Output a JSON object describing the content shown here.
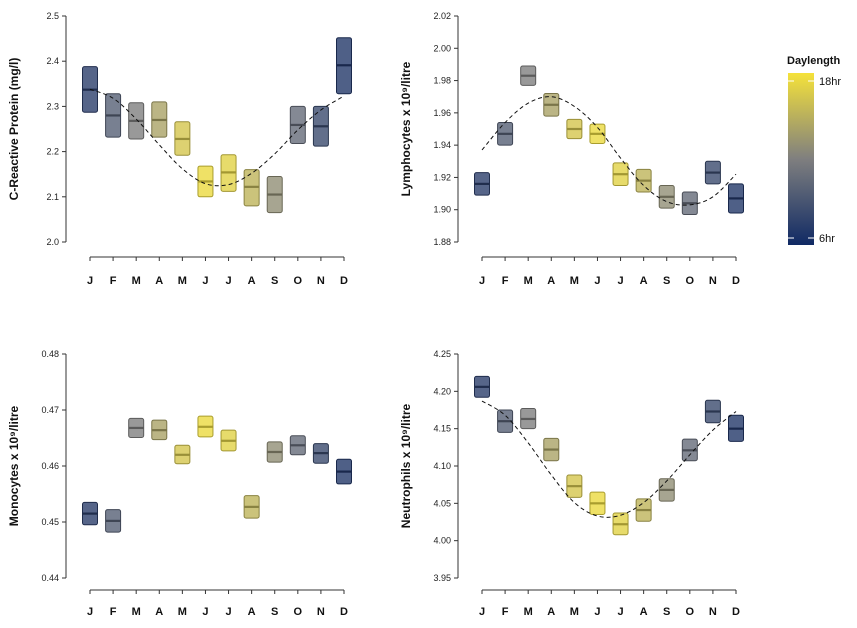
{
  "legend": {
    "title": "Daylength",
    "high_label": "18hr",
    "low_label": "6hr",
    "color_high": "#f5e23a",
    "color_mid": "#7f7f7f",
    "color_low": "#102a64"
  },
  "chart_data": [
    {
      "type": "crossbar",
      "ylabel": "C-Reactive Protein (mg/l)",
      "categories": [
        "J",
        "F",
        "M",
        "A",
        "M",
        "J",
        "J",
        "A",
        "S",
        "O",
        "N",
        "D"
      ],
      "ylim": [
        2.0,
        2.5
      ],
      "yticks": [
        "2.0",
        "2.1",
        "2.2",
        "2.3",
        "2.4",
        "2.5"
      ],
      "mean": [
        2.337,
        2.28,
        2.268,
        2.27,
        2.228,
        2.134,
        2.154,
        2.122,
        2.105,
        2.259,
        2.256,
        2.391
      ],
      "lower": [
        2.287,
        2.232,
        2.228,
        2.232,
        2.192,
        2.1,
        2.112,
        2.08,
        2.065,
        2.218,
        2.212,
        2.328
      ],
      "upper": [
        2.388,
        2.328,
        2.308,
        2.31,
        2.266,
        2.168,
        2.193,
        2.16,
        2.145,
        2.3,
        2.3,
        2.452
      ],
      "daylength": [
        7.5,
        9.8,
        12.0,
        14.2,
        16.3,
        17.5,
        17.0,
        15.2,
        12.9,
        10.6,
        8.3,
        7.0
      ],
      "fit": [
        2.338,
        2.318,
        2.272,
        2.215,
        2.162,
        2.129,
        2.127,
        2.152,
        2.195,
        2.248,
        2.292,
        2.323
      ]
    },
    {
      "type": "crossbar",
      "ylabel": "Lymphocytes x 10⁹/litre",
      "categories": [
        "J",
        "F",
        "M",
        "A",
        "M",
        "J",
        "J",
        "A",
        "S",
        "O",
        "N",
        "D"
      ],
      "ylim": [
        1.88,
        2.02
      ],
      "yticks": [
        "1.88",
        "1.90",
        "1.92",
        "1.94",
        "1.96",
        "1.98",
        "2.00",
        "2.02"
      ],
      "mean": [
        1.916,
        1.947,
        1.983,
        1.965,
        1.95,
        1.947,
        1.922,
        1.918,
        1.908,
        1.904,
        1.923,
        1.907
      ],
      "lower": [
        1.909,
        1.94,
        1.977,
        1.958,
        1.944,
        1.941,
        1.915,
        1.911,
        1.901,
        1.897,
        1.916,
        1.898
      ],
      "upper": [
        1.923,
        1.954,
        1.989,
        1.972,
        1.956,
        1.953,
        1.929,
        1.925,
        1.915,
        1.911,
        1.93,
        1.916
      ],
      "daylength": [
        7.5,
        9.8,
        12.0,
        14.2,
        16.3,
        17.5,
        17.0,
        15.2,
        12.9,
        10.6,
        8.3,
        7.0
      ],
      "fit": [
        1.937,
        1.954,
        1.966,
        1.97,
        1.964,
        1.951,
        1.932,
        1.915,
        1.905,
        1.903,
        1.908,
        1.922
      ]
    },
    {
      "type": "crossbar",
      "ylabel": "Monocytes x 10⁹/litre",
      "categories": [
        "J",
        "F",
        "M",
        "A",
        "M",
        "J",
        "J",
        "A",
        "S",
        "O",
        "N",
        "D"
      ],
      "ylim": [
        0.44,
        0.48
      ],
      "yticks": [
        "0.44",
        "0.45",
        "0.46",
        "0.47",
        "0.48"
      ],
      "mean": [
        0.4515,
        0.4502,
        0.4668,
        0.4664,
        0.462,
        0.467,
        0.4645,
        0.4527,
        0.4625,
        0.4637,
        0.4623,
        0.459
      ],
      "lower": [
        0.4495,
        0.4482,
        0.4651,
        0.4647,
        0.4604,
        0.4652,
        0.4627,
        0.4507,
        0.4607,
        0.462,
        0.4605,
        0.4568
      ],
      "upper": [
        0.4535,
        0.4522,
        0.4685,
        0.4682,
        0.4637,
        0.4689,
        0.4664,
        0.4547,
        0.4643,
        0.4654,
        0.464,
        0.4612
      ],
      "daylength": [
        7.5,
        9.8,
        12.0,
        14.2,
        16.3,
        17.5,
        17.0,
        15.2,
        12.9,
        10.6,
        8.3,
        7.0
      ]
    },
    {
      "type": "crossbar",
      "ylabel": "Neutrophils x 10⁹/litre",
      "categories": [
        "J",
        "F",
        "M",
        "A",
        "M",
        "J",
        "J",
        "A",
        "S",
        "O",
        "N",
        "D"
      ],
      "ylim": [
        3.95,
        4.25
      ],
      "yticks": [
        "3.95",
        "4.00",
        "4.05",
        "4.10",
        "4.15",
        "4.20",
        "4.25"
      ],
      "mean": [
        4.206,
        4.16,
        4.163,
        4.122,
        4.073,
        4.05,
        4.022,
        4.041,
        4.068,
        4.121,
        4.173,
        4.15
      ],
      "lower": [
        4.192,
        4.145,
        4.15,
        4.107,
        4.058,
        4.035,
        4.008,
        4.026,
        4.053,
        4.107,
        4.158,
        4.133
      ],
      "upper": [
        4.22,
        4.175,
        4.177,
        4.137,
        4.088,
        4.065,
        4.037,
        4.056,
        4.083,
        4.136,
        4.188,
        4.168
      ],
      "daylength": [
        7.5,
        9.8,
        12.0,
        14.2,
        16.3,
        17.5,
        17.0,
        15.2,
        12.9,
        10.6,
        8.3,
        7.0
      ],
      "fit": [
        4.187,
        4.168,
        4.131,
        4.088,
        4.051,
        4.033,
        4.034,
        4.051,
        4.08,
        4.115,
        4.148,
        4.173
      ]
    }
  ]
}
